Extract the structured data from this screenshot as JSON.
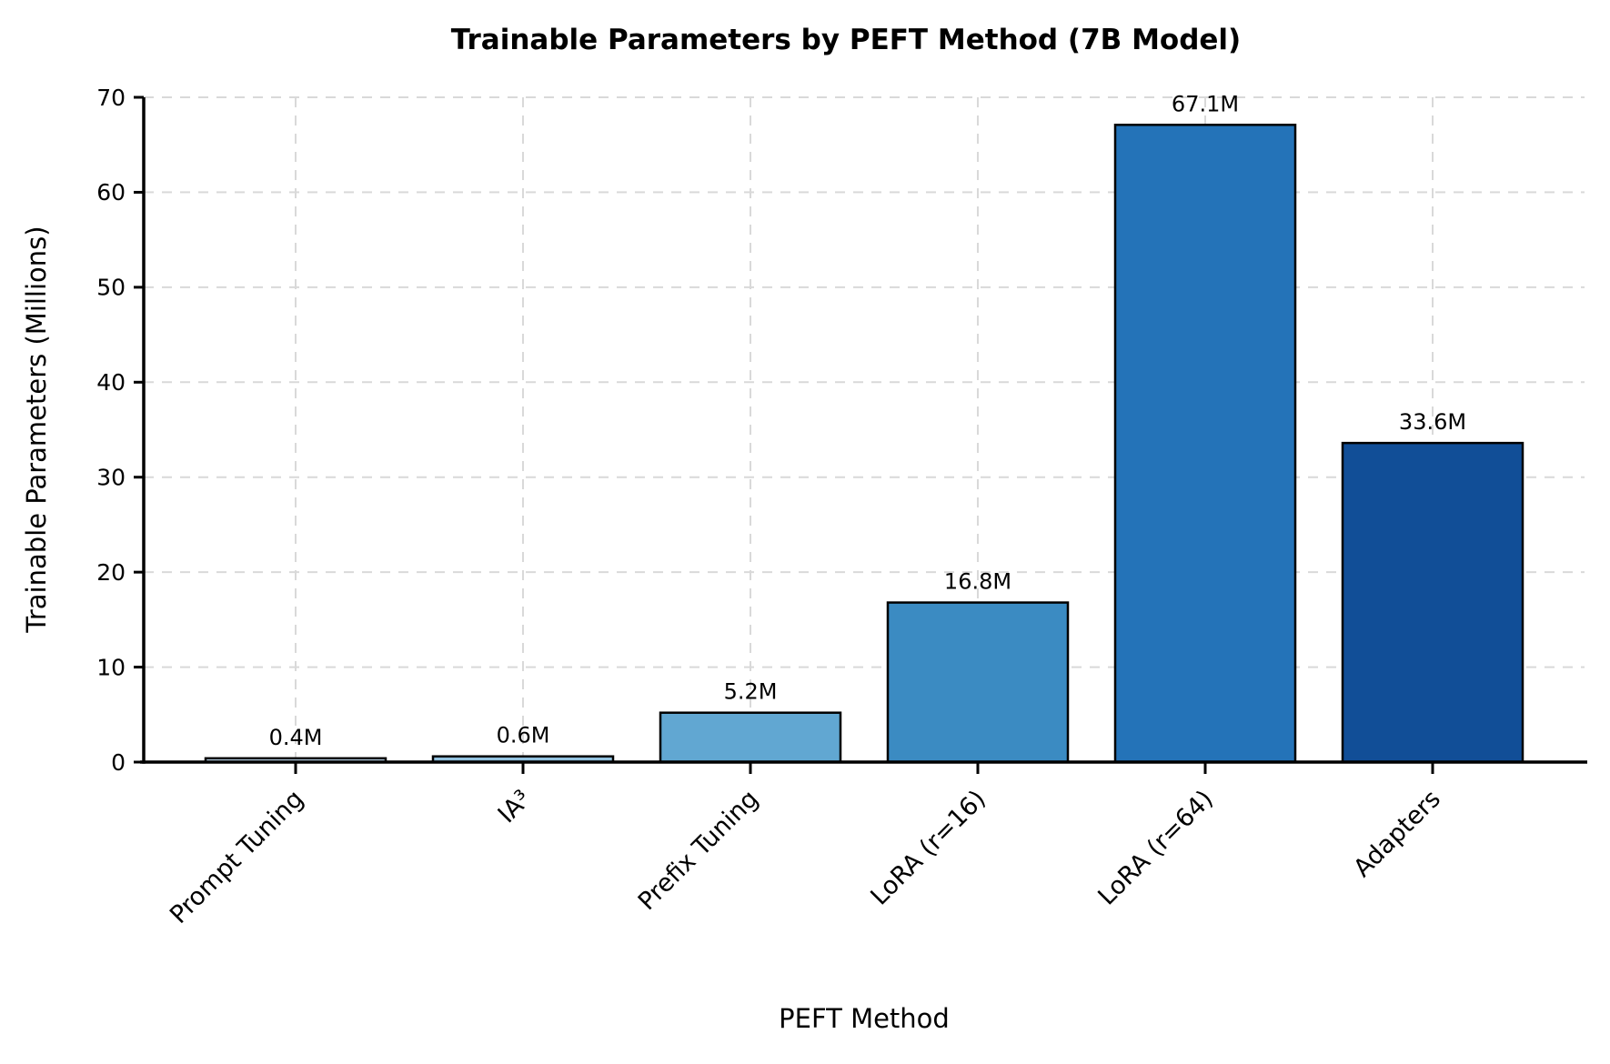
{
  "title": "Trainable Parameters by PEFT Method (7B Model)",
  "axes": {
    "x_label": "PEFT Method",
    "y_label": "Trainable Parameters (Millions)"
  },
  "chart_data": {
    "type": "bar",
    "title": "Trainable Parameters by PEFT Method (7B Model)",
    "xlabel": "PEFT Method",
    "ylabel": "Trainable Parameters (Millions)",
    "categories": [
      "Prompt Tuning",
      "IA³",
      "Prefix Tuning",
      "LoRA (r=16)",
      "LoRA (r=64)",
      "Adapters"
    ],
    "values": [
      0.4,
      0.6,
      5.2,
      16.8,
      67.1,
      33.6
    ],
    "bar_labels": [
      "0.4M",
      "0.6M",
      "5.2M",
      "16.8M",
      "67.1M",
      "33.6M"
    ],
    "ylim": [
      0,
      70
    ],
    "yticks": [
      0,
      10,
      20,
      30,
      40,
      50,
      60,
      70
    ],
    "legend": "none",
    "grid": "dashed gridlines on both axes",
    "x_tick_rotation_deg": 45,
    "bar_colors": [
      "#bcd6ea",
      "#92c1de",
      "#61a7d2",
      "#3b8bc2",
      "#2473b8",
      "#114e97"
    ],
    "bar_edge_color": "#000000",
    "grid_color": "#d9d9d9",
    "axis_color": "#000000",
    "background_color": "#ffffff",
    "text_color": "#000000"
  }
}
